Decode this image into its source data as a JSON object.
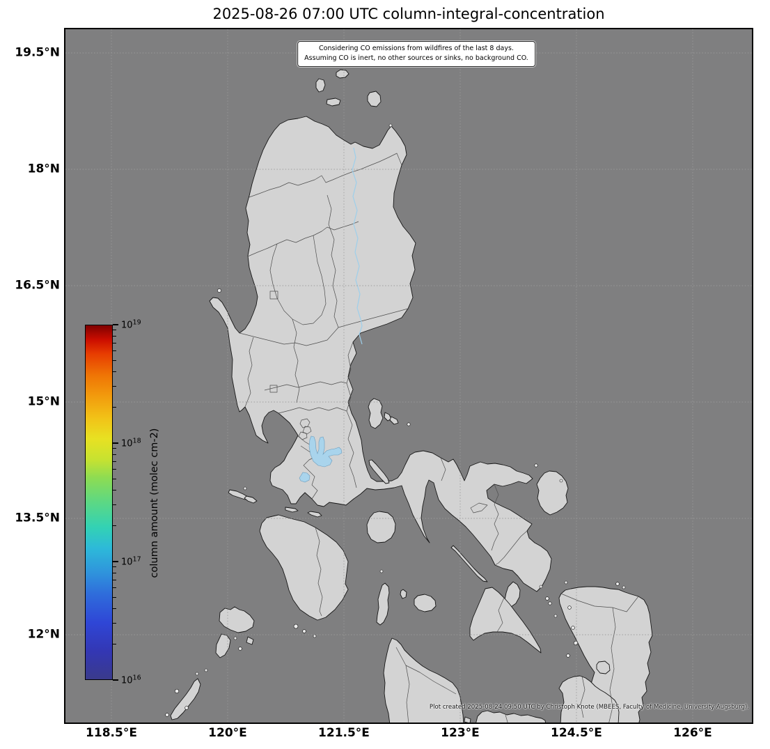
{
  "title": "2025-08-26 07:00 UTC column-integral-concentration",
  "note": {
    "line1": "Considering CO emissions from wildfires of the last 8 days.",
    "line2": "Assuming CO is inert, no other sources or sinks, no background CO."
  },
  "attribution": "Plot created 2025-08-24 09:50 UTC by Christoph Knote (MBEES, Faculty of Medicine, University Augsburg).",
  "axes": {
    "x_ticks": [
      {
        "label": "118.5°E",
        "lon": 118.5
      },
      {
        "label": "120°E",
        "lon": 120.0
      },
      {
        "label": "121.5°E",
        "lon": 121.5
      },
      {
        "label": "123°E",
        "lon": 123.0
      },
      {
        "label": "124.5°E",
        "lon": 124.5
      },
      {
        "label": "126°E",
        "lon": 126.0
      }
    ],
    "y_ticks": [
      {
        "label": "19.5°N",
        "lat": 19.5
      },
      {
        "label": "18°N",
        "lat": 18.0
      },
      {
        "label": "16.5°N",
        "lat": 16.5
      },
      {
        "label": "15°N",
        "lat": 15.0
      },
      {
        "label": "13.5°N",
        "lat": 13.5
      },
      {
        "label": "12°N",
        "lat": 12.0
      }
    ]
  },
  "colorbar": {
    "label": "column amount (molec cm-2)",
    "min_exp": 16,
    "max_exp": 19,
    "ticks": [
      {
        "base": "10",
        "exp": "16"
      },
      {
        "base": "10",
        "exp": "17"
      },
      {
        "base": "10",
        "exp": "18"
      },
      {
        "base": "10",
        "exp": "19"
      }
    ],
    "gradient": [
      [
        0.0,
        "#3a3a8c"
      ],
      [
        0.08,
        "#3337b4"
      ],
      [
        0.16,
        "#2f46d6"
      ],
      [
        0.24,
        "#2f6cdb"
      ],
      [
        0.3,
        "#2f93dc"
      ],
      [
        0.37,
        "#2db9d9"
      ],
      [
        0.43,
        "#33d2b4"
      ],
      [
        0.5,
        "#5cd884"
      ],
      [
        0.57,
        "#8edc52"
      ],
      [
        0.62,
        "#c6e231"
      ],
      [
        0.68,
        "#e8e122"
      ],
      [
        0.74,
        "#f2c117"
      ],
      [
        0.8,
        "#f29b0d"
      ],
      [
        0.86,
        "#ef7405"
      ],
      [
        0.92,
        "#e73c01"
      ],
      [
        0.96,
        "#cb0d00"
      ],
      [
        1.0,
        "#7e0000"
      ]
    ]
  },
  "map": {
    "sea_color": "#7f7f80",
    "land_color": "#d3d3d3",
    "islet_color": "#ebebeb",
    "coast_color": "#161616",
    "province_color": "#4d4d4d",
    "lake_color": "#a9d4ec",
    "river_color": "#9dcfeb",
    "graticule_color": "#9b9b9b"
  }
}
